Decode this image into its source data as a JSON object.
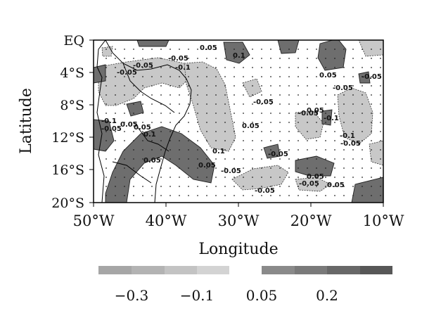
{
  "map": {
    "ylabel": "Latitude",
    "xlabel": "Longitude",
    "lat_ticks": [
      "EQ",
      "4°S",
      "8°S",
      "12°S",
      "16°S",
      "20°S"
    ],
    "lon_ticks": [
      "50°W",
      "40°W",
      "30°W",
      "20°W",
      "10°W"
    ],
    "contour_labels": [
      "0.05",
      "0.1",
      "-0.05",
      "-0.1",
      "0.1",
      "-0.05",
      "-0.05",
      "0.05",
      "-0.1",
      "0.05",
      "0.1",
      "-0.05",
      "0.05",
      "-0.05",
      "0.05",
      "-0.05",
      "-0.05",
      "0.05",
      "-0.1",
      "0.05",
      "-0.1",
      "-0.05",
      "-0.05",
      "-0.05",
      "0.05",
      "-0.05",
      "0.05",
      "0.05",
      "-0.05",
      "-0.05"
    ],
    "colors": {
      "neg_fill": "#c8c8c8",
      "pos_fill": "#6e6e6e",
      "frame": "#000000"
    }
  },
  "colorbar": {
    "tick_labels": [
      "−0.3",
      "−0.1",
      "0.05",
      "0.2"
    ],
    "neg_colors": [
      "#a6a6a6",
      "#b3b3b3",
      "#c3c3c3",
      "#d3d3d3"
    ],
    "pos_colors": [
      "#8a8a8a",
      "#7a7a7a",
      "#686868",
      "#575757"
    ]
  }
}
